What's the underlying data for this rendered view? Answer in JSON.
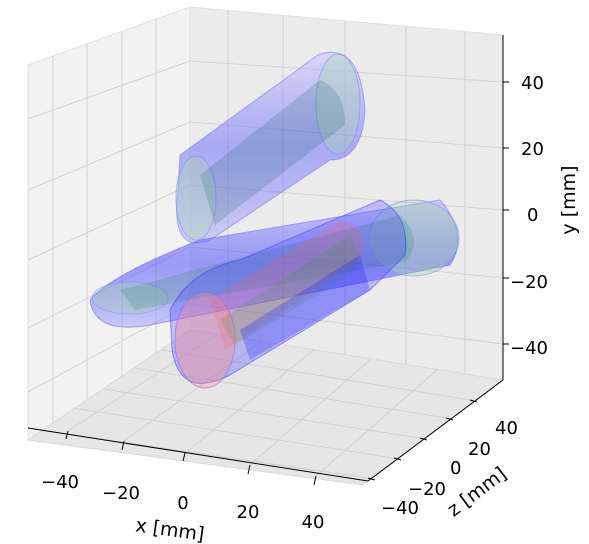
{
  "chart_data": {
    "type": "3d-surface",
    "axes": {
      "x": {
        "label": "x [mm]",
        "ticks": [
          -40,
          -20,
          0,
          20,
          40
        ],
        "range": [
          -50,
          50
        ]
      },
      "y": {
        "label": "y [mm]",
        "ticks": [
          40,
          20,
          0,
          -20,
          -40
        ],
        "range": [
          -50,
          50
        ]
      },
      "z": {
        "label": "z [mm]",
        "ticks": [
          40,
          20,
          0,
          -20,
          -40
        ],
        "range": [
          -50,
          50
        ]
      }
    },
    "grid": true,
    "panes": "light-gray",
    "series": [
      {
        "color": "#0000ff",
        "opacity": 0.15
      },
      {
        "color": "#008000",
        "opacity": 0.2
      },
      {
        "color": "#ff0000",
        "opacity": 0.2
      }
    ]
  }
}
